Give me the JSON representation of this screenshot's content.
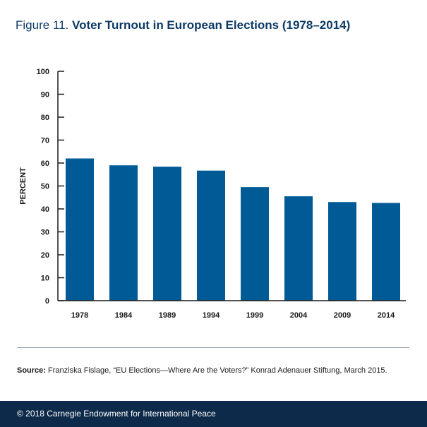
{
  "header": {
    "figure_label": "Figure 11.",
    "title": "Voter Turnout in European Elections (1978–2014)"
  },
  "chart_data": {
    "type": "bar",
    "categories": [
      "1978",
      "1984",
      "1989",
      "1994",
      "1999",
      "2004",
      "2009",
      "2014"
    ],
    "values": [
      62,
      59,
      58.4,
      56.7,
      49.5,
      45.5,
      43,
      42.6
    ],
    "xlabel": "",
    "ylabel": "PERCENT",
    "ylim": [
      0,
      100
    ],
    "yticks": [
      0,
      10,
      20,
      30,
      40,
      50,
      60,
      70,
      80,
      90,
      100
    ],
    "grid": false,
    "legend": "none",
    "bar_color": "#005a96"
  },
  "source": {
    "label": "Source:",
    "text": "Franziska Fislage, “EU Elections—Where Are the Voters?” Konrad Adenauer Stiftung, March 2015."
  },
  "footer": {
    "text": "© 2018 Carnegie Endowment for International Peace"
  },
  "colors": {
    "title": "#0b3a66",
    "bars": "#005a96",
    "footer_bg": "#0d2a4a"
  }
}
